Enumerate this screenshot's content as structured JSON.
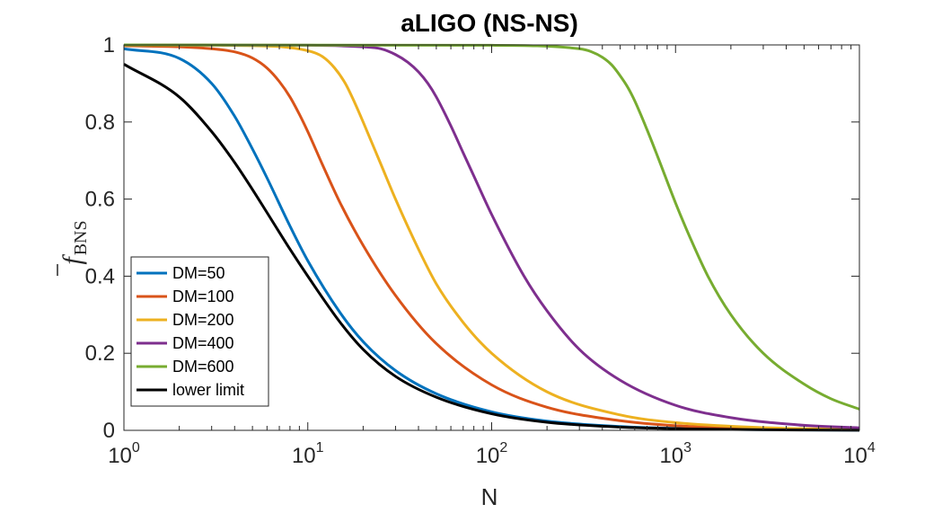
{
  "chart_data": {
    "type": "line",
    "title": "aLIGO (NS-NS)",
    "xlabel": "N",
    "ylabel": {
      "symbol": "f",
      "subscript": "BNS"
    },
    "xscale": "log",
    "xlim": [
      1,
      10000
    ],
    "ylim": [
      0,
      1
    ],
    "xticks": [
      {
        "base": "10",
        "exp": "0",
        "value": 1
      },
      {
        "base": "10",
        "exp": "1",
        "value": 10
      },
      {
        "base": "10",
        "exp": "2",
        "value": 100
      },
      {
        "base": "10",
        "exp": "3",
        "value": 1000
      },
      {
        "base": "10",
        "exp": "4",
        "value": 10000
      }
    ],
    "yticks": [
      {
        "label": "0",
        "value": 0
      },
      {
        "label": "0.2",
        "value": 0.2
      },
      {
        "label": "0.4",
        "value": 0.4
      },
      {
        "label": "0.6",
        "value": 0.6
      },
      {
        "label": "0.8",
        "value": 0.8
      },
      {
        "label": "1",
        "value": 1
      }
    ],
    "legend_position": "lower-left",
    "series": [
      {
        "name": "DM=50",
        "color": "#0072BD",
        "x": [
          1,
          2,
          3,
          4,
          5,
          6,
          8,
          10,
          15,
          20,
          30,
          50,
          100,
          200,
          500,
          1000,
          3000,
          10000
        ],
        "y": [
          0.99,
          0.965,
          0.9,
          0.815,
          0.73,
          0.655,
          0.53,
          0.44,
          0.305,
          0.23,
          0.155,
          0.095,
          0.048,
          0.024,
          0.01,
          0.005,
          0.0017,
          0.0005
        ]
      },
      {
        "name": "DM=100",
        "color": "#D95319",
        "x": [
          1,
          2,
          3,
          4,
          5,
          6,
          7,
          8,
          9,
          10,
          12,
          15,
          20,
          30,
          50,
          100,
          200,
          500,
          1000,
          3000,
          10000
        ],
        "y": [
          0.998,
          0.995,
          0.99,
          0.982,
          0.966,
          0.94,
          0.905,
          0.865,
          0.82,
          0.775,
          0.69,
          0.59,
          0.48,
          0.35,
          0.225,
          0.118,
          0.06,
          0.025,
          0.012,
          0.004,
          0.0012
        ]
      },
      {
        "name": "DM=200",
        "color": "#EDB120",
        "x": [
          1,
          5,
          10,
          12,
          14,
          16,
          18,
          20,
          25,
          30,
          40,
          50,
          70,
          100,
          200,
          500,
          1000,
          3000,
          10000
        ],
        "y": [
          1.0,
          0.998,
          0.985,
          0.97,
          0.94,
          0.9,
          0.85,
          0.8,
          0.69,
          0.6,
          0.47,
          0.38,
          0.28,
          0.2,
          0.1,
          0.04,
          0.02,
          0.007,
          0.002
        ]
      },
      {
        "name": "DM=400",
        "color": "#7E2F8E",
        "x": [
          1,
          10,
          20,
          25,
          30,
          35,
          40,
          45,
          50,
          60,
          70,
          80,
          100,
          150,
          200,
          300,
          500,
          1000,
          2000,
          5000,
          10000
        ],
        "y": [
          1.0,
          0.999,
          0.995,
          0.99,
          0.975,
          0.955,
          0.93,
          0.9,
          0.865,
          0.79,
          0.72,
          0.66,
          0.56,
          0.4,
          0.31,
          0.21,
          0.13,
          0.065,
          0.033,
          0.013,
          0.0065
        ]
      },
      {
        "name": "DM=600",
        "color": "#77AC30",
        "x": [
          1,
          100,
          300,
          350,
          400,
          450,
          500,
          550,
          600,
          700,
          800,
          1000,
          1200,
          1500,
          2000,
          3000,
          5000,
          7000,
          10000
        ],
        "y": [
          1.0,
          0.999,
          0.99,
          0.982,
          0.968,
          0.948,
          0.92,
          0.89,
          0.855,
          0.78,
          0.71,
          0.59,
          0.5,
          0.4,
          0.3,
          0.2,
          0.12,
          0.082,
          0.055
        ]
      },
      {
        "name": "lower limit",
        "color": "#000000",
        "x": [
          1,
          2,
          3,
          4,
          5,
          6,
          8,
          10,
          15,
          20,
          30,
          50,
          100,
          200,
          500,
          1000,
          3000,
          10000
        ],
        "y": [
          0.95,
          0.865,
          0.775,
          0.695,
          0.625,
          0.565,
          0.47,
          0.4,
          0.28,
          0.21,
          0.14,
          0.086,
          0.043,
          0.021,
          0.0085,
          0.0043,
          0.0014,
          0.0004
        ]
      }
    ]
  }
}
